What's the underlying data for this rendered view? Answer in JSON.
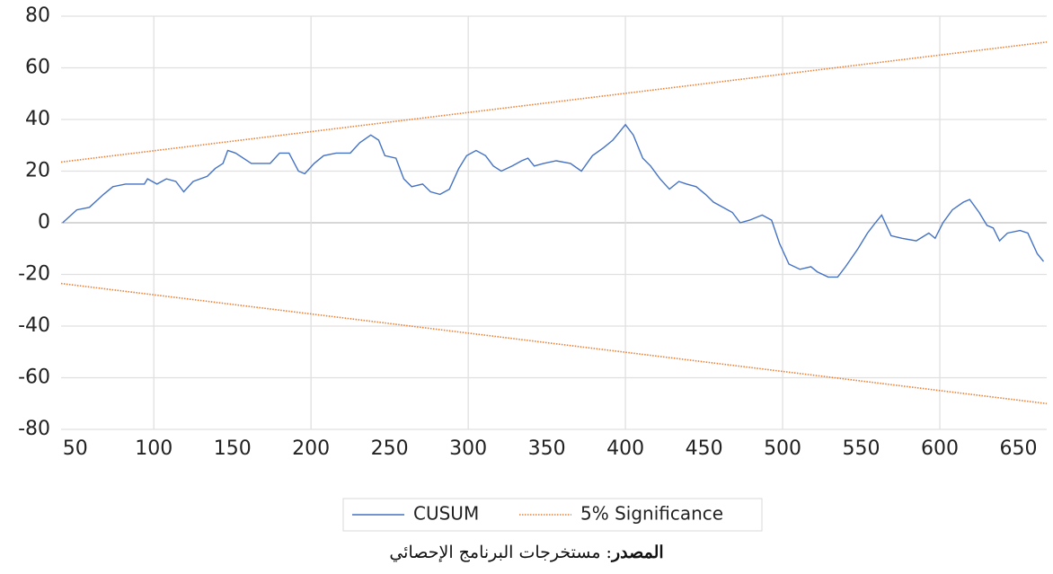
{
  "chart_data": {
    "type": "line",
    "xlim": [
      41,
      668
    ],
    "xticks": [
      50,
      100,
      150,
      200,
      250,
      300,
      350,
      400,
      450,
      500,
      550,
      600,
      650
    ],
    "ylim": [
      -80,
      80
    ],
    "yticks": [
      -80,
      -60,
      -40,
      -20,
      0,
      20,
      40,
      60,
      80
    ],
    "grid": true,
    "series": [
      {
        "name": "CUSUM",
        "color": "#4472c4",
        "style": "solid",
        "x": [
          42,
          51,
          59,
          68,
          74,
          82,
          94,
          96,
          102,
          108,
          114,
          119,
          125,
          134,
          139,
          144,
          147,
          152,
          162,
          174,
          180,
          186,
          192,
          196,
          202,
          208,
          216,
          225,
          231,
          238,
          243,
          247,
          254,
          259,
          264,
          271,
          276,
          282,
          288,
          294,
          299,
          305,
          311,
          316,
          321,
          328,
          334,
          338,
          342,
          348,
          356,
          365,
          372,
          379,
          386,
          392,
          396,
          400,
          405,
          411,
          416,
          422,
          428,
          434,
          439,
          445,
          451,
          456,
          462,
          468,
          473,
          479,
          487,
          493,
          498,
          504,
          511,
          518,
          522,
          529,
          535,
          540,
          548,
          554,
          559,
          563,
          569,
          576,
          585,
          593,
          597,
          602,
          608,
          615,
          619,
          625,
          630,
          634,
          638,
          643,
          651,
          656,
          662,
          666
        ],
        "values": [
          0,
          5,
          6,
          11,
          14,
          15,
          15,
          17,
          15,
          17,
          16,
          12,
          16,
          18,
          21,
          23,
          28,
          27,
          23,
          23,
          27,
          27,
          20,
          19,
          23,
          26,
          27,
          27,
          31,
          34,
          32,
          26,
          25,
          17,
          14,
          15,
          12,
          11,
          13,
          21,
          26,
          28,
          26,
          22,
          20,
          22,
          24,
          25,
          22,
          23,
          24,
          23,
          20,
          26,
          29,
          32,
          35,
          38,
          34,
          25,
          22,
          17,
          13,
          16,
          15,
          14,
          11,
          8,
          6,
          4,
          0,
          1,
          3,
          1,
          -8,
          -16,
          -18,
          -17,
          -19,
          -21,
          -21,
          -17,
          -10,
          -4,
          0,
          3,
          -5,
          -6,
          -7,
          -4,
          -6,
          0,
          5,
          8,
          9,
          4,
          -1,
          -2,
          -7,
          -4,
          -3,
          -4,
          -12,
          -15
        ]
      },
      {
        "name": "5% Significance",
        "color": "#ed7d31",
        "style": "dotted",
        "x": [
          41,
          668
        ],
        "values": [
          23.5,
          70
        ],
        "values_lower": [
          -23.5,
          -70
        ]
      }
    ],
    "source_label": "المصدر",
    "source_text": ": مستخرجات البرنامج الإحصائي"
  }
}
